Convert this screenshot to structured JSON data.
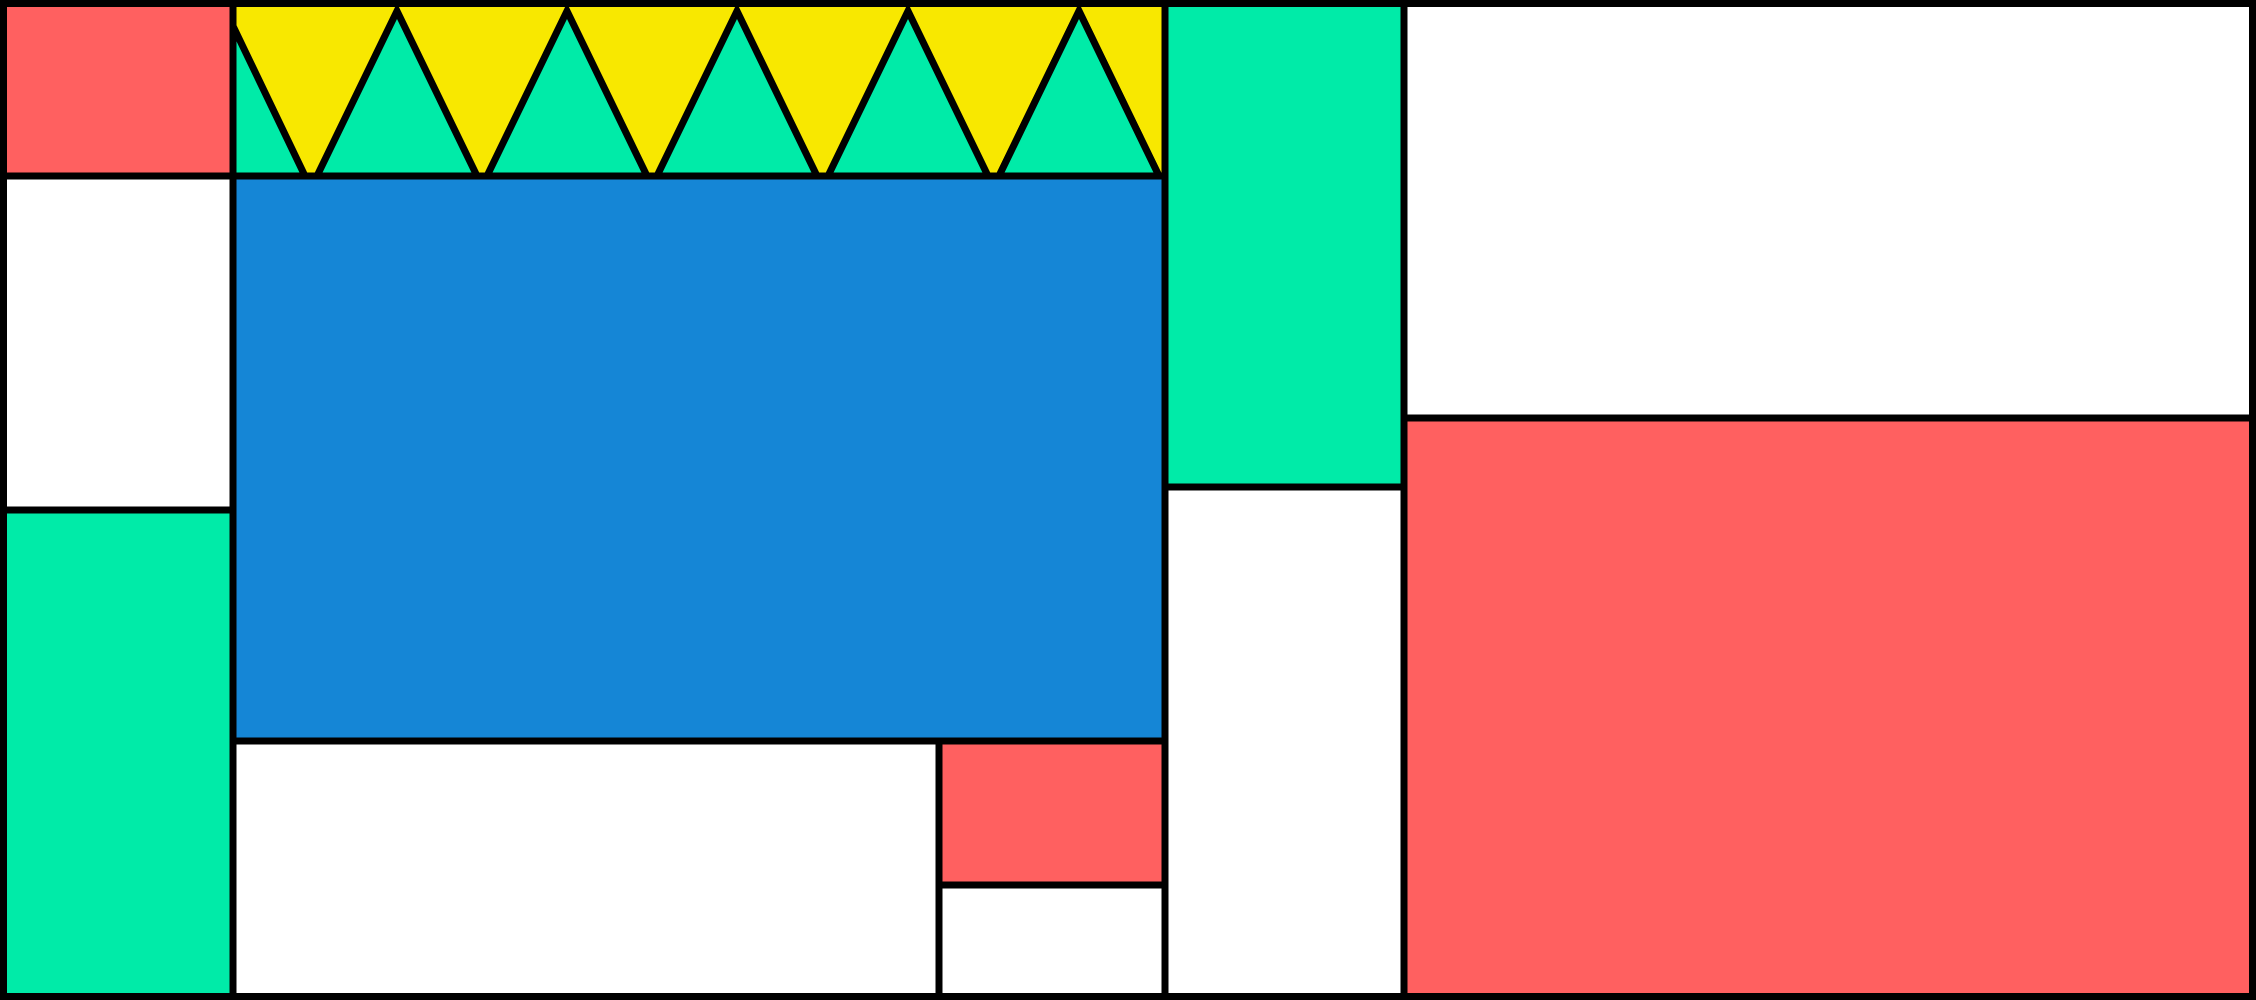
{
  "palette": {
    "red": "#FF6060",
    "white": "#FFFFFF",
    "green": "#00EBA8",
    "blue": "#1586D6",
    "yellow": "#F8E800",
    "stroke": "#000000"
  },
  "panels": [
    {
      "name": "panel-top-left",
      "color": "red"
    },
    {
      "name": "panel-left-middle",
      "color": "white"
    },
    {
      "name": "panel-left-bottom",
      "color": "green"
    },
    {
      "name": "panel-zigzag-band",
      "color": "yellow"
    },
    {
      "name": "panel-center-large",
      "color": "blue"
    },
    {
      "name": "panel-bottom-center",
      "color": "white"
    },
    {
      "name": "panel-bottom-small-top",
      "color": "red"
    },
    {
      "name": "panel-bottom-small-bottom",
      "color": "white"
    },
    {
      "name": "panel-vertical-top",
      "color": "green"
    },
    {
      "name": "panel-vertical-bottom",
      "color": "white"
    },
    {
      "name": "panel-right-top",
      "color": "white"
    },
    {
      "name": "panel-right-bottom",
      "color": "red"
    }
  ],
  "zigzag": {
    "fill": "yellow",
    "triangle_fill": "green",
    "triangle_count": 6
  }
}
